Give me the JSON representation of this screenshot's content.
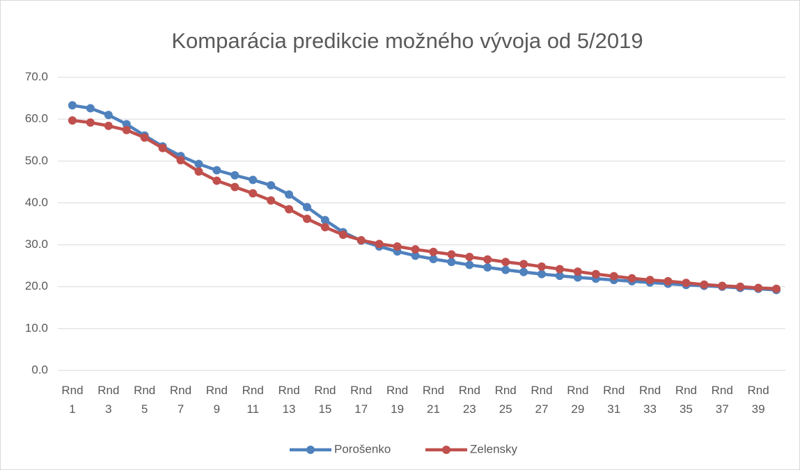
{
  "chart_data": {
    "type": "line",
    "title": "Komparácia predikcie možného vývoja od 5/2019",
    "categories": [
      "Rnd 1",
      null,
      "Rnd 3",
      null,
      "Rnd 5",
      null,
      "Rnd 7",
      null,
      "Rnd 9",
      null,
      "Rnd 11",
      null,
      "Rnd 13",
      null,
      "Rnd 15",
      null,
      "Rnd 17",
      null,
      "Rnd 19",
      null,
      "Rnd 21",
      null,
      "Rnd 23",
      null,
      "Rnd 25",
      null,
      "Rnd 27",
      null,
      "Rnd 29",
      null,
      "Rnd 31",
      null,
      "Rnd 33",
      null,
      "Rnd 35",
      null,
      "Rnd 37",
      null,
      "Rnd 39",
      null
    ],
    "series": [
      {
        "name": "Porošenko",
        "color": "#4f81bd",
        "values": [
          63.3,
          62.6,
          61.0,
          58.8,
          56.1,
          53.5,
          51.2,
          49.3,
          47.8,
          46.6,
          45.5,
          44.2,
          42.0,
          39.0,
          35.9,
          33.0,
          31.0,
          29.6,
          28.4,
          27.4,
          26.6,
          25.9,
          25.2,
          24.6,
          24.0,
          23.5,
          23.0,
          22.6,
          22.2,
          21.9,
          21.6,
          21.3,
          21.0,
          20.7,
          20.4,
          20.2,
          20.0,
          19.7,
          19.5,
          19.2
        ]
      },
      {
        "name": "Zelensky",
        "color": "#c0504d",
        "values": [
          59.7,
          59.2,
          58.4,
          57.4,
          55.6,
          53.1,
          50.2,
          47.5,
          45.3,
          43.8,
          42.3,
          40.6,
          38.5,
          36.2,
          34.2,
          32.4,
          31.1,
          30.2,
          29.6,
          28.9,
          28.3,
          27.7,
          27.1,
          26.5,
          25.9,
          25.4,
          24.8,
          24.2,
          23.6,
          23.0,
          22.5,
          22.0,
          21.6,
          21.3,
          20.9,
          20.5,
          20.2,
          20.0,
          19.7,
          19.5
        ]
      }
    ],
    "ylim": [
      0,
      70
    ],
    "yticks": [
      {
        "value": 0,
        "label": "0.0"
      },
      {
        "value": 10,
        "label": "10.0"
      },
      {
        "value": 20,
        "label": "20.0"
      },
      {
        "value": 30,
        "label": "30.0"
      },
      {
        "value": 40,
        "label": "40.0"
      },
      {
        "value": 50,
        "label": "50.0"
      },
      {
        "value": 60,
        "label": "60.0"
      },
      {
        "value": 70,
        "label": "70.0"
      }
    ],
    "grid": true,
    "legend": "bottom"
  }
}
